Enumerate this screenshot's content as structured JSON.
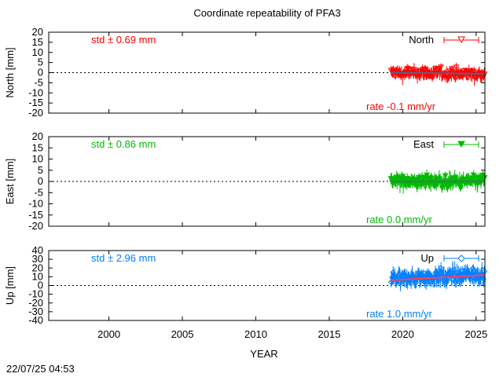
{
  "title": "Coordinate repeatability of PFA3",
  "xlabel": "YEAR",
  "footer_timestamp": "22/07/25 04:53",
  "chart_data": [
    {
      "type": "scatter",
      "panel": "north",
      "ylabel": "North [mm]",
      "ylim": [
        -20,
        20
      ],
      "yticks": [
        20,
        15,
        10,
        5,
        0,
        -5,
        -10,
        -15,
        -20
      ],
      "xlim": [
        1995.9,
        2025.6
      ],
      "xticks": [
        2000,
        2005,
        2010,
        2015,
        2020,
        2025
      ],
      "legend": "North",
      "legend_position": "top-right",
      "color": "#ff0000",
      "trend_color": "#4a6a8a",
      "marker": "open-triangle-down",
      "std_text": "std ± 0.69 mm",
      "rate_text": "rate -0.1 mm/yr",
      "data_start": 2019.2,
      "data_end": 2025.6,
      "mean": -0.5,
      "spread": 1.3,
      "errorbar": 1.8,
      "trend_start": 0.0,
      "trend_end": -0.6
    },
    {
      "type": "scatter",
      "panel": "east",
      "ylabel": "East [mm]",
      "ylim": [
        -20,
        20
      ],
      "yticks": [
        20,
        15,
        10,
        5,
        0,
        -5,
        -10,
        -15,
        -20
      ],
      "xlim": [
        1995.9,
        2025.6
      ],
      "xticks": [
        2000,
        2005,
        2010,
        2015,
        2020,
        2025
      ],
      "legend": "East",
      "legend_position": "top-right",
      "color": "#00bb00",
      "trend_color": "#4a6a8a",
      "marker": "filled-triangle-down",
      "std_text": "std ± 0.86 mm",
      "rate_text": "rate  0.0 mm/yr",
      "data_start": 2019.2,
      "data_end": 2025.6,
      "mean": 0.0,
      "spread": 1.3,
      "errorbar": 2.0,
      "trend_start": 0.0,
      "trend_end": 0.0
    },
    {
      "type": "scatter",
      "panel": "up",
      "ylabel": "Up [mm]",
      "ylim": [
        -40,
        40
      ],
      "yticks": [
        40,
        30,
        20,
        10,
        0,
        -10,
        -20,
        -30,
        -40
      ],
      "xlim": [
        1995.9,
        2025.6
      ],
      "xticks": [
        2000,
        2005,
        2010,
        2015,
        2020,
        2025
      ],
      "legend": "Up",
      "legend_position": "top-right",
      "color": "#0080ff",
      "trend_color": "#ff4060",
      "marker": "open-diamond",
      "std_text": "std ± 2.96 mm",
      "rate_text": "rate  1.0 mm/yr",
      "data_start": 2019.2,
      "data_end": 2025.6,
      "mean": 9.0,
      "spread": 4.0,
      "errorbar": 6.0,
      "trend_start": 6.0,
      "trend_end": 12.0
    }
  ]
}
